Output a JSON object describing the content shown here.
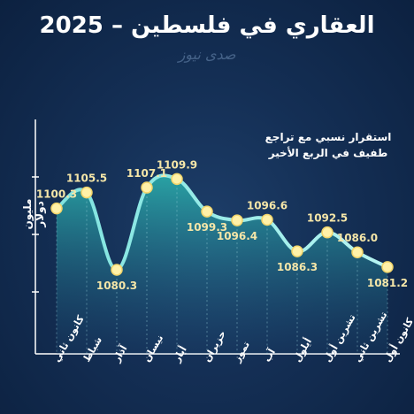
{
  "title": {
    "line1": "العقاري في فلسطين",
    "line2": "العقاري في فلسطين – 2025"
  },
  "watermark": "صدى نيوز",
  "annotation": {
    "line1": "استقرار نسبي مع تراجع",
    "line2": "طفيف في الربع الأخير"
  },
  "colors": {
    "background": "#142f55",
    "line": "#8ff0ec",
    "marker": "#fff1a8",
    "area_top": "#2cb5b0",
    "area_bottom": "#1f4f7a",
    "value_label": "#f5e6a8"
  },
  "chart_data": {
    "type": "area",
    "ylabel": "مليون دولار",
    "title": "العقاري في فلسطين – 2025",
    "categories": [
      "كانون ثاني",
      "شباط",
      "آذار",
      "نيسان",
      "أيار",
      "حزيران",
      "تموز",
      "آب",
      "أيلول",
      "تشرين أول",
      "تشرين ثاني",
      "كانون أول"
    ],
    "values": [
      1100.3,
      1105.5,
      1080.3,
      1107.1,
      1109.9,
      1099.3,
      1096.4,
      1096.6,
      1086.3,
      1092.5,
      1086.0,
      1081.2
    ],
    "annotation": "استقرار نسبي مع تراجع طفيف في الربع الأخير",
    "ylim": [
      1050,
      1125
    ],
    "grid": false,
    "legend": "none"
  }
}
